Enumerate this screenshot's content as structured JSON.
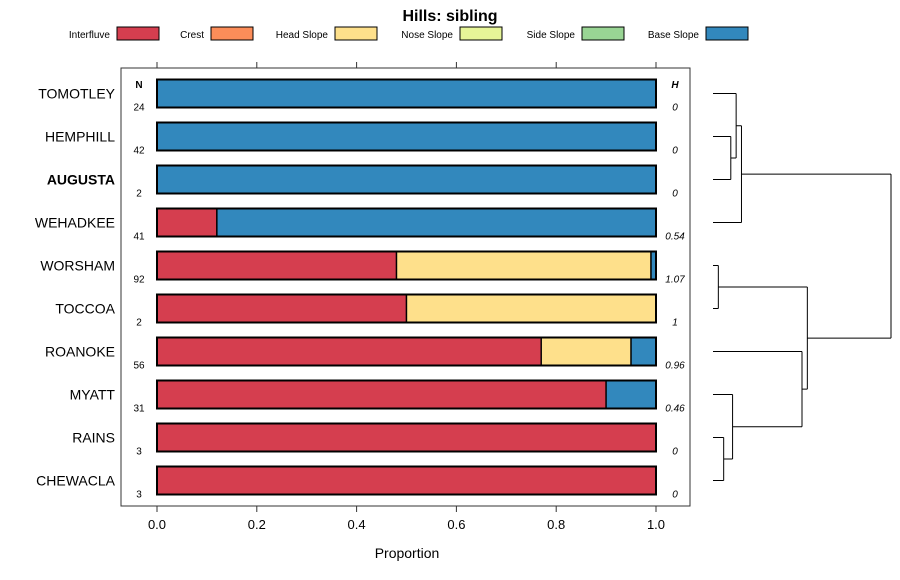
{
  "chart_data": {
    "type": "bar",
    "orientation": "horizontal",
    "stacked": true,
    "title": "Hills: sibling",
    "xlabel": "Proportion",
    "ylabel": "",
    "xlim": [
      0,
      1
    ],
    "xticks": [
      0.0,
      0.2,
      0.4,
      0.6,
      0.8,
      1.0
    ],
    "xtick_labels": [
      "0.0",
      "0.2",
      "0.4",
      "0.6",
      "0.8",
      "1.0"
    ],
    "n_header": "N",
    "h_header": "H",
    "legend_position": "top",
    "highlighted_category": "AUGUSTA",
    "categories": [
      "TOMOTLEY",
      "HEMPHILL",
      "AUGUSTA",
      "WEHADKEE",
      "WORSHAM",
      "TOCCOA",
      "ROANOKE",
      "MYATT",
      "RAINS",
      "CHEWACLA"
    ],
    "n_values": [
      "24",
      "42",
      "2",
      "41",
      "92",
      "2",
      "56",
      "31",
      "3",
      "3"
    ],
    "h_values": [
      "0",
      "0",
      "0",
      "0.54",
      "1.07",
      "1",
      "0.96",
      "0.46",
      "0",
      "0"
    ],
    "series": [
      {
        "name": "Interfluve",
        "color": "#D53E4F",
        "values": [
          0,
          0,
          0,
          0.12,
          0.48,
          0.5,
          0.77,
          0.9,
          1.0,
          1.0
        ]
      },
      {
        "name": "Crest",
        "color": "#FC8D59",
        "values": [
          0,
          0,
          0,
          0,
          0,
          0,
          0,
          0,
          0,
          0
        ]
      },
      {
        "name": "Head Slope",
        "color": "#FEE08B",
        "values": [
          0,
          0,
          0,
          0,
          0.51,
          0.5,
          0.18,
          0,
          0,
          0
        ]
      },
      {
        "name": "Nose Slope",
        "color": "#E6F598",
        "values": [
          0,
          0,
          0,
          0,
          0,
          0,
          0,
          0,
          0,
          0
        ]
      },
      {
        "name": "Side Slope",
        "color": "#99D594",
        "values": [
          0,
          0,
          0,
          0,
          0,
          0,
          0,
          0,
          0,
          0
        ]
      },
      {
        "name": "Base Slope",
        "color": "#3288BD",
        "values": [
          1.0,
          1.0,
          1.0,
          0.88,
          0.01,
          0,
          0.05,
          0.1,
          0,
          0
        ]
      }
    ],
    "dendrogram": {
      "leaf_order": [
        "TOMOTLEY",
        "HEMPHILL",
        "AUGUSTA",
        "WEHADKEE",
        "WORSHAM",
        "TOCCOA",
        "ROANOKE",
        "MYATT",
        "RAINS",
        "CHEWACLA"
      ],
      "merges": [
        {
          "a": "HEMPHILL",
          "b": "AUGUSTA",
          "height": 0.1
        },
        {
          "a": "RAINS",
          "b": "CHEWACLA",
          "height": 0.06
        },
        {
          "a": "WORSHAM",
          "b": "TOCCOA",
          "height": 0.03
        },
        {
          "a": "TOMOTLEY",
          "b": "HEMPHILL+AUGUSTA",
          "height": 0.13
        },
        {
          "a": "MYATT",
          "b": "RAINS+CHEWACLA",
          "height": 0.11
        },
        {
          "a": "TOMOTLEY+HEMPHILL+AUGUSTA",
          "b": "WEHADKEE",
          "height": 0.16
        },
        {
          "a": "ROANOKE",
          "b": "MYATT+RAINS+CHEWACLA",
          "height": 0.5
        },
        {
          "a": "WORSHAM+TOCCOA",
          "b": "ROANOKE+MYATT+RAINS+CHEWACLA",
          "height": 0.53
        },
        {
          "a": "TOMOTLEY+HEMPHILL+AUGUSTA+WEHADKEE",
          "b": "WORSHAM+TOCCOA+ROANOKE+MYATT+RAINS+CHEWACLA",
          "height": 1.0
        }
      ]
    }
  }
}
